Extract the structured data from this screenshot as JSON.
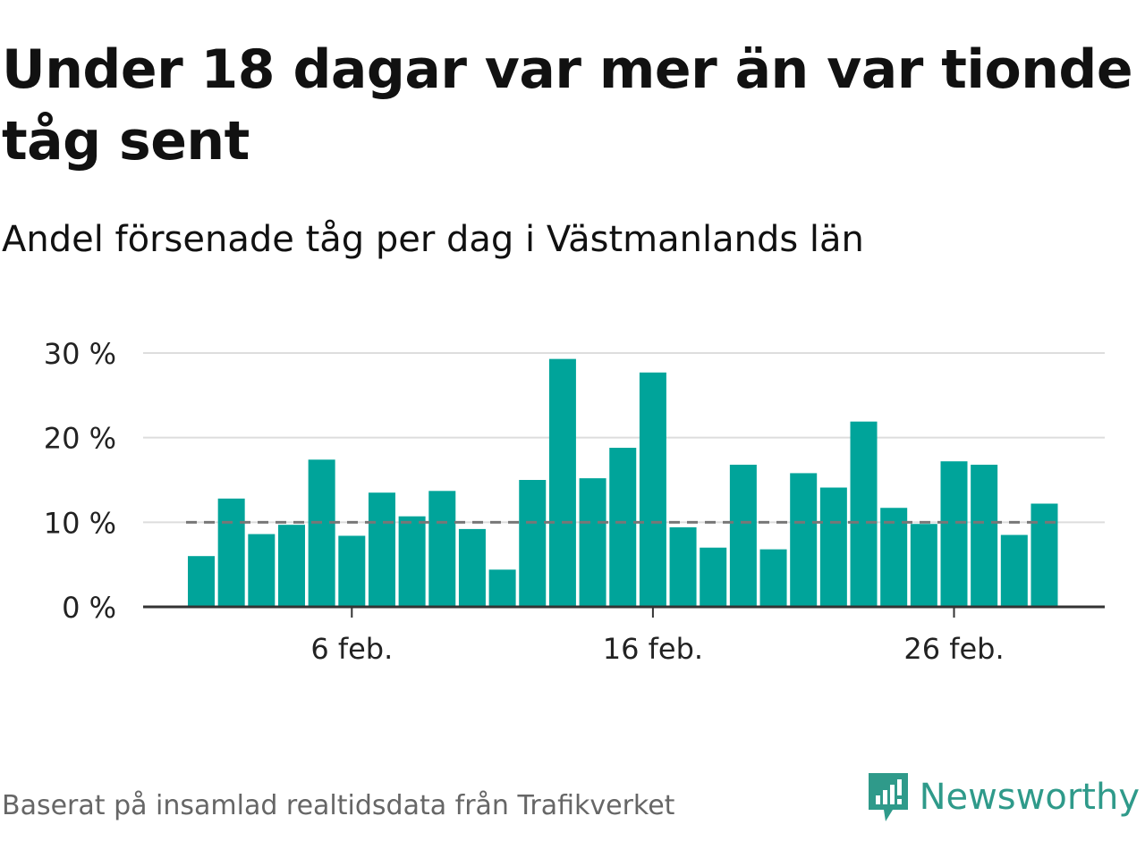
{
  "title": "Under 18 dagar var mer än var tionde tåg sent",
  "subtitle": "Andel försenade tåg per dag i Västmanlands län",
  "footer": {
    "source": "Baserat på insamlad realtidsdata från Trafikverket",
    "brand": "Newsworthy",
    "brand_icon": "newsworthy-logo-icon"
  },
  "colors": {
    "bar": "#00a49a",
    "threshold": "#777777",
    "grid": "#dddddd",
    "brand": "#2f9a8a"
  },
  "chart_data": {
    "type": "bar",
    "x": [
      "2021-02-01",
      "2021-02-02",
      "2021-02-03",
      "2021-02-04",
      "2021-02-05",
      "2021-02-06",
      "2021-02-07",
      "2021-02-08",
      "2021-02-09",
      "2021-02-10",
      "2021-02-11",
      "2021-02-12",
      "2021-02-13",
      "2021-02-14",
      "2021-02-15",
      "2021-02-16",
      "2021-02-17",
      "2021-02-18",
      "2021-02-19",
      "2021-02-20",
      "2021-02-21",
      "2021-02-22",
      "2021-02-23",
      "2021-02-24",
      "2021-02-25",
      "2021-02-26",
      "2021-02-27",
      "2021-02-28",
      "2021-03-01"
    ],
    "values": [
      6.0,
      12.8,
      8.6,
      9.7,
      17.4,
      8.4,
      13.5,
      10.7,
      13.7,
      9.2,
      4.4,
      15.0,
      29.3,
      15.2,
      18.8,
      27.7,
      9.4,
      7.0,
      16.8,
      6.8,
      15.8,
      14.1,
      21.9,
      11.7,
      9.8,
      17.2,
      16.8,
      8.5,
      12.2
    ],
    "threshold": 10,
    "ylim": [
      0,
      30
    ],
    "yticks": [
      0,
      10,
      20,
      30
    ],
    "ytick_labels": [
      "0 %",
      "10 %",
      "20 %",
      "30 %"
    ],
    "xticks": [
      "2021-02-06",
      "2021-02-16",
      "2021-02-26"
    ],
    "xtick_labels": [
      "6 feb.",
      "16 feb.",
      "26 feb."
    ],
    "grid": true,
    "legend": "none"
  }
}
